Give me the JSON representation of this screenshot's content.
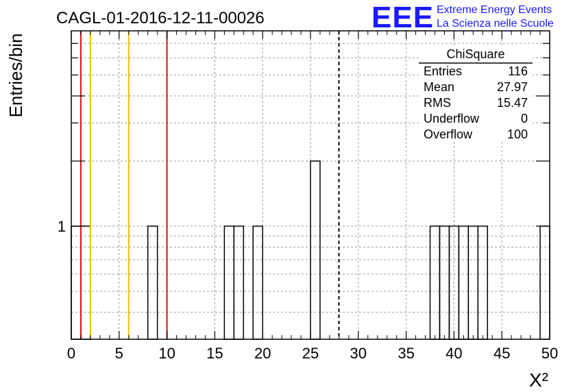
{
  "header": {
    "run_title": "CAGL-01-2016-12-11-00026",
    "logo_text": "EEE",
    "logo_line1": "Extreme Energy Events",
    "logo_line2": "La Scienza nelle Scuole"
  },
  "stats": {
    "title": "ChiSquare",
    "rows": [
      {
        "label": "Entries",
        "value": "116"
      },
      {
        "label": "Mean",
        "value": "27.97"
      },
      {
        "label": "RMS",
        "value": "15.47"
      },
      {
        "label": "Underflow",
        "value": "0"
      },
      {
        "label": "Overflow",
        "value": "100"
      }
    ]
  },
  "colors": {
    "red": "#dd1111",
    "yellow": "#f2c000",
    "blue": "#1a1aff"
  },
  "chart_data": {
    "type": "bar",
    "title": "CAGL-01-2016-12-11-00026",
    "xlabel": "X²",
    "ylabel": "Entries/bin",
    "xlim": [
      0,
      50
    ],
    "y_scale": "log",
    "ylim": [
      0.3,
      8
    ],
    "bin_width": 1,
    "x_ticks": [
      "0",
      "5",
      "10",
      "15",
      "20",
      "25",
      "30",
      "35",
      "40",
      "45",
      "50"
    ],
    "y_tick_labels": [
      {
        "value": 1,
        "label": "1"
      }
    ],
    "grid": true,
    "bins": [
      {
        "x": 0,
        "count": 1
      },
      {
        "x": 1,
        "count": 1
      },
      {
        "x": 8,
        "count": 1
      },
      {
        "x": 16,
        "count": 1
      },
      {
        "x": 17,
        "count": 1
      },
      {
        "x": 19,
        "count": 1
      },
      {
        "x": 25,
        "count": 2
      },
      {
        "x": 37.5,
        "count": 1
      },
      {
        "x": 38.5,
        "count": 1
      },
      {
        "x": 39.5,
        "count": 1
      },
      {
        "x": 40.5,
        "count": 1
      },
      {
        "x": 41.5,
        "count": 1
      },
      {
        "x": 42.5,
        "count": 1
      },
      {
        "x": 49,
        "count": 1
      }
    ],
    "vertical_lines": [
      {
        "x": 1,
        "color": "red",
        "style": "solid"
      },
      {
        "x": 10,
        "color": "red",
        "style": "solid"
      },
      {
        "x": 2,
        "color": "yellow",
        "style": "solid"
      },
      {
        "x": 6,
        "color": "yellow",
        "style": "solid"
      },
      {
        "x": 27.97,
        "color": "black",
        "style": "dashed"
      }
    ]
  }
}
